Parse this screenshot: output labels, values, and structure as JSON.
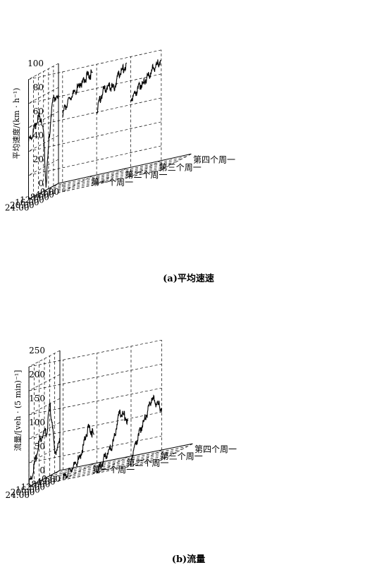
{
  "chart_data": [
    {
      "type": "line",
      "projection": "3d",
      "caption": "(a)平均速速",
      "zlabel": "平均速度/(km · h⁻¹)",
      "zlim": [
        0,
        100
      ],
      "z_ticks": [
        "0",
        "20",
        "40",
        "60",
        "80",
        "100"
      ],
      "time_ticks": [
        "0:00",
        "4:00",
        "8:00",
        "12:00",
        "16:00",
        "20:00",
        "24:00"
      ],
      "week_ticks": [
        "第一个周一",
        "第二个周一",
        "第三个周一",
        "第四个周一"
      ],
      "grid": true,
      "series": [
        {
          "x": [
            0,
            2,
            4,
            6,
            8,
            10,
            12,
            14,
            16,
            18,
            20,
            22,
            24
          ],
          "values": [
            70,
            72,
            74,
            60,
            35,
            2,
            50,
            62,
            65,
            60,
            56,
            50,
            48
          ]
        },
        {
          "x": [
            0,
            2,
            4,
            6,
            8,
            10,
            12,
            14,
            16,
            18,
            20,
            22,
            24
          ],
          "values": [
            86,
            85,
            86,
            84,
            82,
            83,
            80,
            78,
            76,
            75,
            72,
            70,
            62
          ]
        },
        {
          "x": [
            0,
            2,
            4,
            6,
            8,
            10,
            12,
            14,
            16,
            18,
            20,
            22,
            24
          ],
          "values": [
            88,
            84,
            84,
            82,
            78,
            72,
            74,
            76,
            76,
            76,
            72,
            68,
            60
          ]
        },
        {
          "x": [
            0,
            2,
            4,
            6,
            8,
            10,
            12,
            14,
            16,
            18,
            20,
            22,
            24
          ],
          "values": [
            84,
            82,
            80,
            80,
            78,
            76,
            74,
            72,
            72,
            70,
            68,
            66,
            64
          ]
        }
      ]
    },
    {
      "type": "line",
      "projection": "3d",
      "caption": "(b)流量",
      "zlabel": "流量/[veh · (5 min)⁻¹]",
      "zlim": [
        0,
        250
      ],
      "z_ticks": [
        "0",
        "50",
        "100",
        "150",
        "200",
        "250"
      ],
      "time_ticks": [
        "0:00",
        "4:00",
        "8:00",
        "12:00",
        "16:00",
        "20:00",
        "24:00"
      ],
      "week_ticks": [
        "第一个周一",
        "第二个周一",
        "第三个周一",
        "第四个周一"
      ],
      "grid": true,
      "series": [
        {
          "x": [
            0,
            2,
            4,
            6,
            8,
            10,
            12,
            14,
            16,
            18,
            20,
            22,
            24
          ],
          "values": [
            60,
            50,
            40,
            110,
            150,
            90,
            100,
            90,
            85,
            60,
            40,
            15,
            5
          ]
        },
        {
          "x": [
            0,
            2,
            4,
            6,
            8,
            10,
            12,
            14,
            16,
            18,
            20,
            22,
            24
          ],
          "values": [
            60,
            70,
            80,
            70,
            50,
            35,
            25,
            20,
            15,
            12,
            10,
            5,
            2
          ]
        },
        {
          "x": [
            0,
            2,
            4,
            6,
            8,
            10,
            12,
            14,
            16,
            18,
            20,
            22,
            24
          ],
          "values": [
            75,
            85,
            95,
            100,
            90,
            60,
            40,
            35,
            30,
            25,
            15,
            10,
            5
          ]
        },
        {
          "x": [
            0,
            2,
            4,
            6,
            8,
            10,
            12,
            14,
            16,
            18,
            20,
            22,
            24
          ],
          "values": [
            85,
            95,
            100,
            110,
            120,
            105,
            90,
            80,
            70,
            55,
            45,
            30,
            15
          ]
        }
      ]
    }
  ]
}
